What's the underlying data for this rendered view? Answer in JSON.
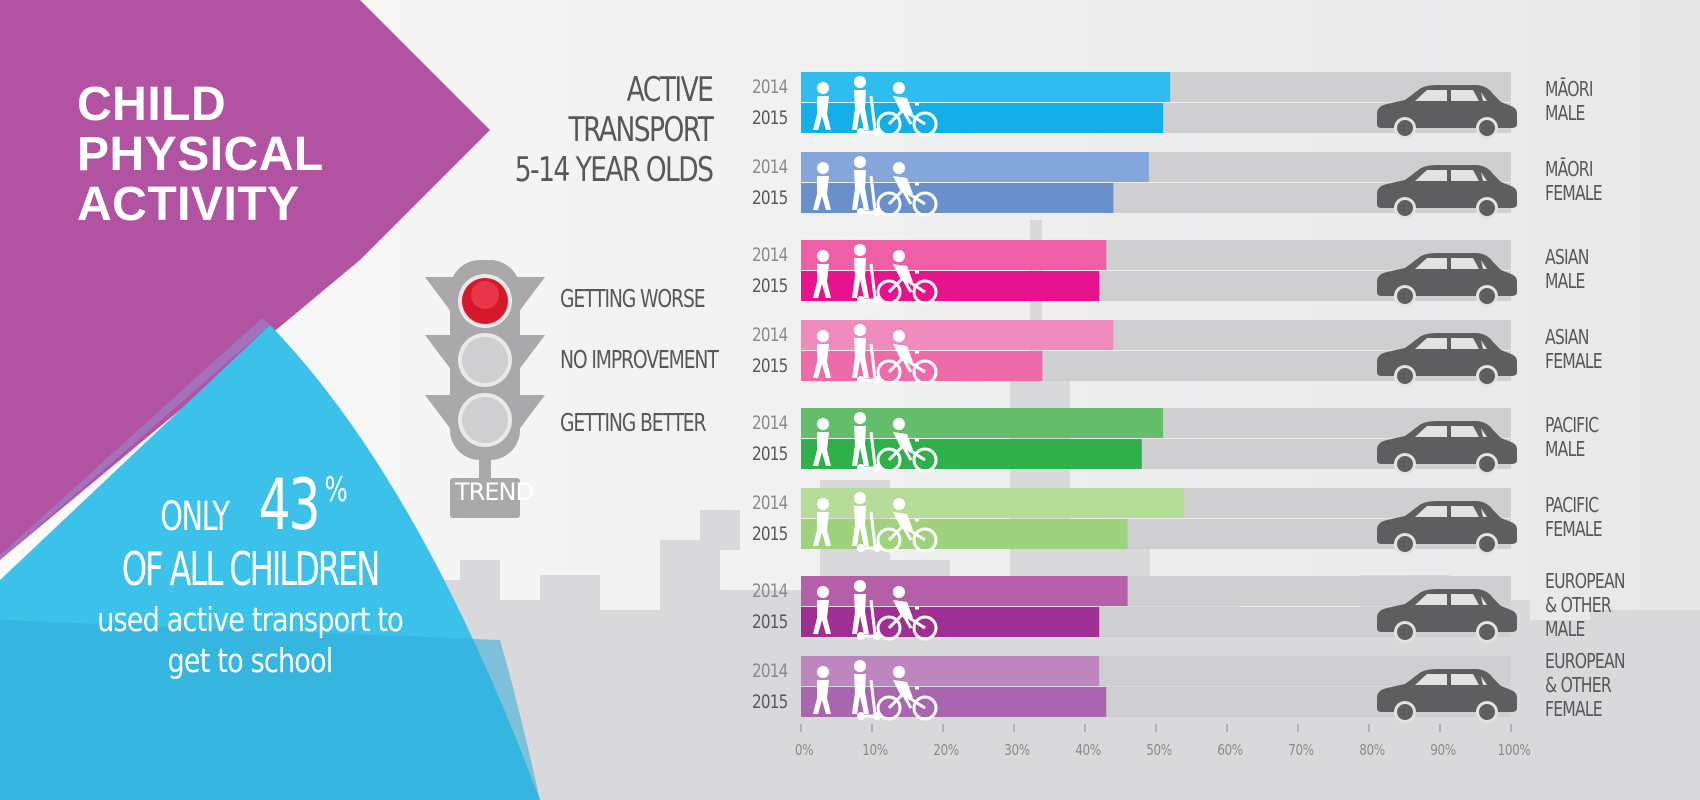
{
  "title": {
    "lines": [
      "CHILD",
      "PHYSICAL",
      "ACTIVITY"
    ]
  },
  "callout": {
    "only": "ONLY",
    "percent": "43",
    "percent_sign": "%",
    "line2": "OF ALL CHILDREN",
    "line3": "used active transport to",
    "line4": "get to school"
  },
  "trend_legend": {
    "items": [
      "GETTING WORSE",
      "NO IMPROVEMENT",
      "GETTING BETTER"
    ],
    "label": "TREND",
    "active_color": "#d7182a"
  },
  "colors": {
    "purple": "#b153a1",
    "blue": "#3cc2ea",
    "gray_track": "#cfcfd1",
    "dark_text": "#58585a",
    "car": "#5e5e60"
  },
  "chart_data": {
    "type": "bar",
    "title": [
      "ACTIVE",
      "TRANSPORT",
      "5-14 YEAR OLDS"
    ],
    "xlim": [
      0,
      100
    ],
    "xticks": [
      "0%",
      "10%",
      "20%",
      "30%",
      "40%",
      "50%",
      "60%",
      "70%",
      "80%",
      "90%",
      "100%"
    ],
    "years": [
      "2014",
      "2015"
    ],
    "groups": [
      {
        "label": [
          "MĀORI",
          "MALE"
        ],
        "values": [
          52,
          51
        ],
        "colors": [
          "#2ebdee",
          "#14aee8"
        ]
      },
      {
        "label": [
          "MĀORI",
          "FEMALE"
        ],
        "values": [
          49,
          44
        ],
        "colors": [
          "#85a6da",
          "#6a90cc"
        ]
      },
      {
        "label": [
          "ASIAN",
          "MALE"
        ],
        "values": [
          43,
          42
        ],
        "colors": [
          "#ee5fa6",
          "#e6148c"
        ]
      },
      {
        "label": [
          "ASIAN",
          "FEMALE"
        ],
        "values": [
          44,
          34
        ],
        "colors": [
          "#f08bbd",
          "#ee6ba9"
        ]
      },
      {
        "label": [
          "PACIFIC",
          "MALE"
        ],
        "values": [
          51,
          48
        ],
        "colors": [
          "#64bd6a",
          "#2fb04a"
        ]
      },
      {
        "label": [
          "PACIFIC",
          "FEMALE"
        ],
        "values": [
          54,
          46
        ],
        "colors": [
          "#b5dc98",
          "#9ed27c"
        ]
      },
      {
        "label": [
          "EUROPEAN",
          "& OTHER",
          "MALE"
        ],
        "values": [
          46,
          42
        ],
        "colors": [
          "#b55fa8",
          "#a02f93"
        ]
      },
      {
        "label": [
          "EUROPEAN",
          "& OTHER",
          "FEMALE"
        ],
        "values": [
          42,
          43
        ],
        "colors": [
          "#bd86be",
          "#a866ae"
        ]
      }
    ]
  }
}
